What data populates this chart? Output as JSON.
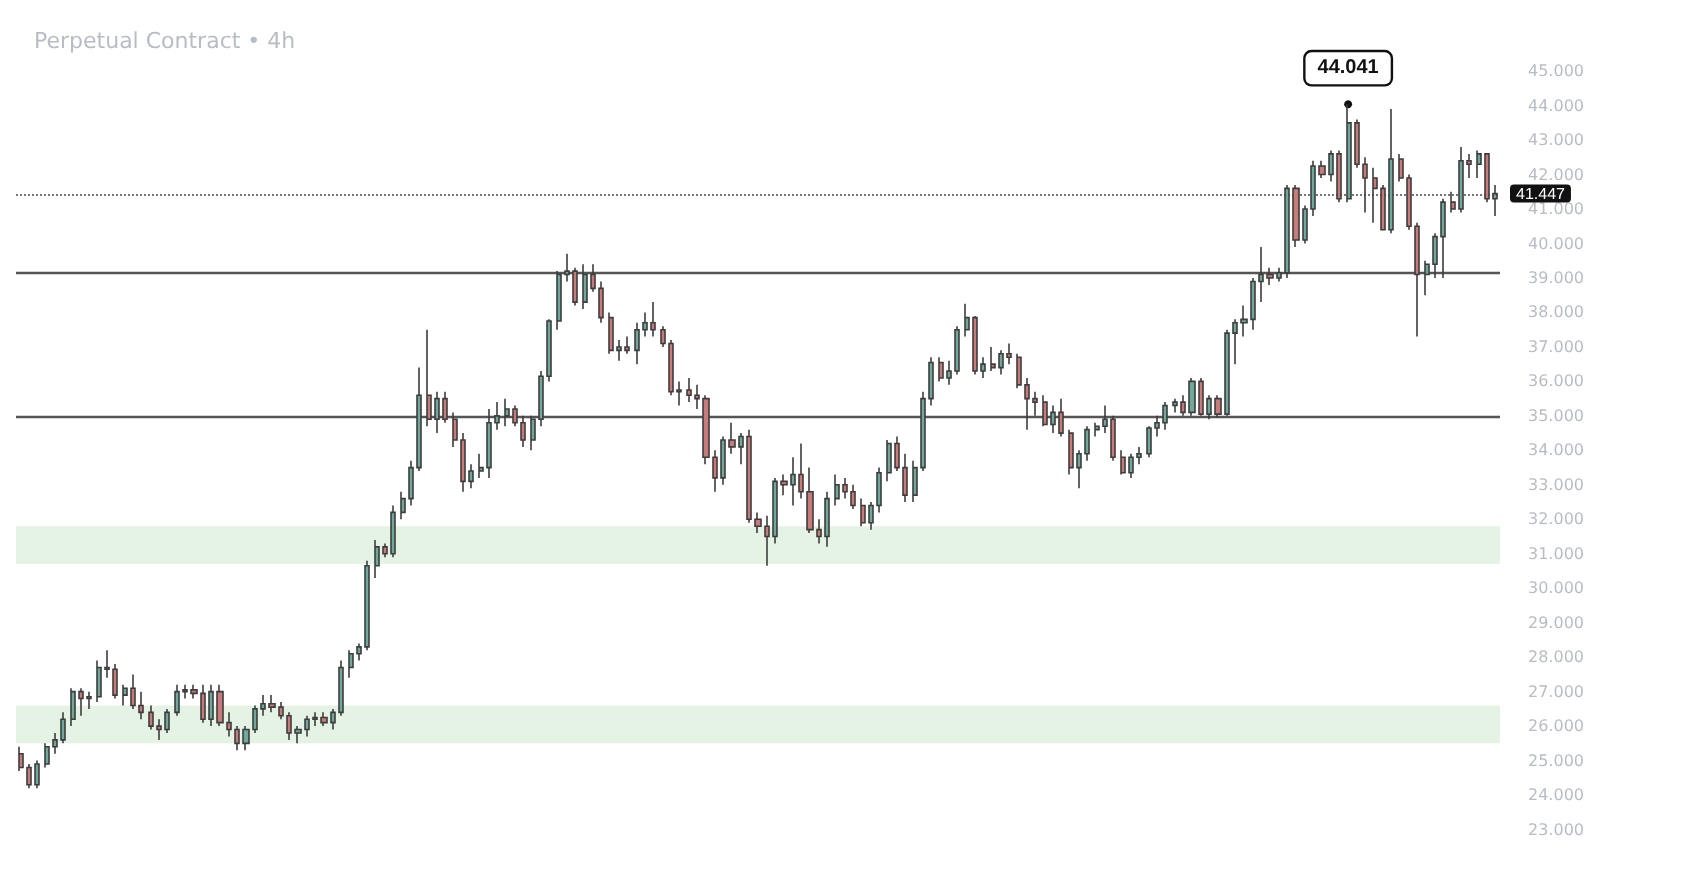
{
  "chart_data": {
    "type": "candlestick",
    "title": "Perpetual Contract • 4h",
    "categories": [
      null,
      null,
      null,
      null,
      null,
      null,
      null,
      null,
      null,
      null,
      null,
      null,
      null,
      null,
      null,
      null,
      null,
      null,
      null,
      null,
      null,
      null,
      null,
      null,
      null,
      null,
      null,
      null,
      null,
      null,
      null,
      null,
      null,
      null,
      null,
      null,
      null,
      null,
      null,
      null,
      null,
      null,
      null,
      null,
      null,
      null,
      null,
      null,
      null,
      null,
      null,
      null,
      null,
      null,
      null,
      null,
      null,
      null,
      null,
      null,
      null,
      null,
      null,
      null,
      null,
      null,
      null,
      null,
      null,
      null,
      null,
      null,
      null,
      null,
      null,
      null,
      null,
      null,
      null,
      null,
      null,
      null,
      null,
      null,
      null,
      null,
      null,
      null,
      null,
      null,
      null,
      null,
      null,
      null,
      null,
      null,
      null,
      null,
      null,
      null,
      null,
      null,
      null,
      null,
      null,
      null,
      null,
      null,
      null,
      null,
      null,
      null,
      null,
      null,
      null,
      null,
      null,
      null,
      null,
      null,
      null,
      null,
      null,
      null,
      null,
      null,
      null,
      null,
      null,
      null,
      null,
      null,
      null,
      null,
      null,
      null,
      null,
      null,
      null,
      null,
      null,
      null,
      null,
      null,
      null,
      null,
      null,
      null,
      null,
      null,
      null,
      null,
      null,
      null,
      null,
      null,
      null,
      null,
      null,
      null,
      null,
      null,
      null,
      null,
      null,
      null,
      null,
      null,
      null,
      null,
      null
    ],
    "ohlc": [
      [
        25.2,
        25.4,
        24.7,
        24.8
      ],
      [
        24.8,
        24.9,
        24.2,
        24.3
      ],
      [
        24.3,
        25.0,
        24.2,
        24.9
      ],
      [
        24.9,
        25.5,
        24.8,
        25.4
      ],
      [
        25.4,
        25.8,
        25.2,
        25.6
      ],
      [
        25.6,
        26.4,
        25.5,
        26.2
      ],
      [
        26.2,
        27.1,
        26.0,
        27.0
      ],
      [
        27.0,
        27.1,
        26.3,
        26.8
      ],
      [
        26.8,
        27.0,
        26.5,
        26.85
      ],
      [
        26.85,
        27.9,
        26.7,
        27.7
      ],
      [
        27.7,
        28.2,
        27.4,
        27.65
      ],
      [
        27.65,
        27.8,
        26.8,
        26.9
      ],
      [
        26.9,
        27.2,
        26.6,
        27.1
      ],
      [
        27.1,
        27.5,
        26.5,
        26.6
      ],
      [
        26.6,
        27.0,
        26.2,
        26.4
      ],
      [
        26.4,
        26.6,
        25.9,
        26.0
      ],
      [
        26.0,
        26.2,
        25.6,
        25.9
      ],
      [
        25.9,
        26.5,
        25.8,
        26.4
      ],
      [
        26.4,
        27.2,
        26.3,
        27.0
      ],
      [
        27.0,
        27.2,
        26.8,
        27.05
      ],
      [
        27.05,
        27.2,
        26.8,
        26.95
      ],
      [
        26.95,
        27.2,
        26.1,
        26.2
      ],
      [
        26.2,
        27.2,
        26.0,
        27.0
      ],
      [
        27.0,
        27.2,
        26.0,
        26.1
      ],
      [
        26.1,
        26.4,
        25.7,
        25.9
      ],
      [
        25.9,
        26.0,
        25.3,
        25.5
      ],
      [
        25.5,
        26.0,
        25.3,
        25.9
      ],
      [
        25.9,
        26.6,
        25.8,
        26.5
      ],
      [
        26.5,
        26.9,
        26.3,
        26.65
      ],
      [
        26.65,
        26.9,
        26.4,
        26.55
      ],
      [
        26.55,
        26.7,
        26.2,
        26.3
      ],
      [
        26.3,
        26.4,
        25.6,
        25.8
      ],
      [
        25.8,
        26.0,
        25.5,
        25.9
      ],
      [
        25.9,
        26.3,
        25.7,
        26.2
      ],
      [
        26.2,
        26.4,
        26.0,
        26.25
      ],
      [
        26.25,
        26.4,
        26.0,
        26.1
      ],
      [
        26.1,
        26.5,
        25.9,
        26.4
      ],
      [
        26.4,
        27.9,
        26.3,
        27.7
      ],
      [
        27.7,
        28.2,
        27.4,
        28.1
      ],
      [
        28.1,
        28.4,
        27.9,
        28.3
      ],
      [
        28.3,
        30.8,
        28.2,
        30.65
      ],
      [
        30.65,
        31.4,
        30.3,
        31.2
      ],
      [
        31.2,
        31.3,
        30.9,
        31.0
      ],
      [
        31.0,
        32.4,
        30.9,
        32.2
      ],
      [
        32.2,
        32.8,
        32.0,
        32.6
      ],
      [
        32.6,
        33.7,
        32.4,
        33.5
      ],
      [
        33.5,
        36.4,
        33.4,
        35.6
      ],
      [
        35.6,
        37.5,
        34.7,
        34.9
      ],
      [
        34.9,
        35.7,
        34.5,
        35.5
      ],
      [
        35.5,
        35.7,
        34.8,
        34.9
      ],
      [
        34.9,
        35.1,
        34.1,
        34.3
      ],
      [
        34.3,
        34.5,
        32.8,
        33.1
      ],
      [
        33.1,
        33.6,
        32.9,
        33.4
      ],
      [
        33.4,
        33.9,
        33.2,
        33.5
      ],
      [
        33.5,
        35.2,
        33.2,
        34.8
      ],
      [
        34.8,
        35.4,
        34.6,
        35.0
      ],
      [
        35.0,
        35.5,
        34.7,
        35.2
      ],
      [
        35.2,
        35.3,
        34.7,
        34.8
      ],
      [
        34.8,
        35.0,
        34.1,
        34.3
      ],
      [
        34.3,
        35.0,
        34.0,
        34.9
      ],
      [
        34.9,
        36.3,
        34.7,
        36.15
      ],
      [
        36.15,
        37.8,
        36.0,
        37.75
      ],
      [
        37.75,
        39.2,
        37.5,
        39.1
      ],
      [
        39.1,
        39.7,
        38.9,
        39.2
      ],
      [
        39.2,
        39.3,
        38.2,
        38.3
      ],
      [
        38.3,
        39.4,
        38.1,
        39.1
      ],
      [
        39.1,
        39.4,
        38.6,
        38.7
      ],
      [
        38.7,
        38.9,
        37.7,
        37.85
      ],
      [
        37.85,
        38.0,
        36.8,
        36.9
      ],
      [
        36.9,
        37.2,
        36.6,
        37.0
      ],
      [
        37.0,
        37.3,
        36.8,
        36.9
      ],
      [
        36.9,
        37.7,
        36.5,
        37.5
      ],
      [
        37.5,
        38.0,
        37.3,
        37.7
      ],
      [
        37.7,
        38.3,
        37.3,
        37.5
      ],
      [
        37.5,
        37.6,
        37.0,
        37.1
      ],
      [
        37.1,
        37.2,
        35.6,
        35.7
      ],
      [
        35.7,
        36.0,
        35.3,
        35.75
      ],
      [
        35.75,
        36.1,
        35.4,
        35.6
      ],
      [
        35.6,
        35.9,
        35.2,
        35.5
      ],
      [
        35.5,
        35.6,
        33.6,
        33.8
      ],
      [
        33.8,
        34.0,
        32.8,
        33.2
      ],
      [
        33.2,
        34.4,
        33.0,
        34.3
      ],
      [
        34.3,
        34.8,
        33.9,
        34.1
      ],
      [
        34.1,
        34.5,
        33.6,
        34.4
      ],
      [
        34.4,
        34.6,
        31.9,
        32.0
      ],
      [
        32.0,
        32.2,
        31.6,
        31.8
      ],
      [
        31.8,
        32.1,
        30.65,
        31.5
      ],
      [
        31.5,
        33.2,
        31.3,
        33.1
      ],
      [
        33.1,
        33.3,
        32.7,
        33.0
      ],
      [
        33.0,
        33.8,
        32.4,
        33.3
      ],
      [
        33.3,
        34.2,
        32.6,
        32.8
      ],
      [
        32.8,
        33.5,
        31.6,
        31.7
      ],
      [
        31.7,
        32.0,
        31.3,
        31.5
      ],
      [
        31.5,
        32.8,
        31.2,
        32.6
      ],
      [
        32.6,
        33.3,
        32.4,
        33.0
      ],
      [
        33.0,
        33.2,
        32.6,
        32.8
      ],
      [
        32.8,
        33.0,
        32.3,
        32.4
      ],
      [
        32.4,
        32.6,
        31.8,
        31.9
      ],
      [
        31.9,
        32.5,
        31.7,
        32.4
      ],
      [
        32.4,
        33.5,
        32.2,
        33.35
      ],
      [
        33.35,
        34.3,
        33.1,
        34.2
      ],
      [
        34.2,
        34.4,
        33.4,
        33.5
      ],
      [
        33.5,
        33.9,
        32.5,
        32.7
      ],
      [
        32.7,
        33.7,
        32.5,
        33.5
      ],
      [
        33.5,
        35.7,
        33.4,
        35.5
      ],
      [
        35.5,
        36.7,
        35.3,
        36.55
      ],
      [
        36.55,
        36.7,
        36.0,
        36.1
      ],
      [
        36.1,
        36.6,
        35.9,
        36.3
      ],
      [
        36.3,
        37.6,
        36.2,
        37.5
      ],
      [
        37.5,
        38.25,
        37.3,
        37.85
      ],
      [
        37.85,
        37.9,
        36.2,
        36.3
      ],
      [
        36.3,
        36.7,
        36.1,
        36.5
      ],
      [
        36.5,
        37.0,
        36.3,
        36.4
      ],
      [
        36.4,
        36.9,
        36.2,
        36.8
      ],
      [
        36.8,
        37.1,
        36.5,
        36.7
      ],
      [
        36.7,
        36.8,
        35.8,
        35.9
      ],
      [
        35.9,
        36.1,
        34.6,
        35.5
      ],
      [
        35.5,
        35.7,
        35.0,
        35.4
      ],
      [
        35.4,
        35.6,
        34.7,
        34.75
      ],
      [
        34.75,
        35.3,
        34.5,
        35.1
      ],
      [
        35.1,
        35.5,
        34.4,
        34.5
      ],
      [
        34.5,
        34.6,
        33.3,
        33.5
      ],
      [
        33.5,
        34.0,
        32.9,
        33.9
      ],
      [
        33.9,
        34.7,
        33.7,
        34.6
      ],
      [
        34.6,
        34.8,
        34.4,
        34.7
      ],
      [
        34.7,
        35.3,
        34.5,
        34.9
      ],
      [
        34.9,
        35.0,
        33.7,
        33.8
      ],
      [
        33.8,
        34.0,
        33.3,
        33.35
      ],
      [
        33.35,
        33.9,
        33.2,
        33.8
      ],
      [
        33.8,
        34.1,
        33.6,
        33.9
      ],
      [
        33.9,
        34.7,
        33.8,
        34.65
      ],
      [
        34.65,
        35.0,
        34.4,
        34.8
      ],
      [
        34.8,
        35.4,
        34.6,
        35.3
      ],
      [
        35.3,
        35.5,
        35.1,
        35.4
      ],
      [
        35.4,
        35.6,
        35.0,
        35.1
      ],
      [
        35.1,
        36.1,
        35.0,
        36.0
      ],
      [
        36.0,
        36.1,
        35.0,
        35.05
      ],
      [
        35.05,
        35.6,
        34.9,
        35.5
      ],
      [
        35.5,
        35.6,
        34.95,
        35.05
      ],
      [
        35.05,
        37.5,
        35.0,
        37.4
      ],
      [
        37.4,
        37.8,
        36.5,
        37.7
      ],
      [
        37.7,
        38.2,
        37.3,
        37.8
      ],
      [
        37.8,
        39.0,
        37.5,
        38.9
      ],
      [
        38.9,
        39.9,
        38.3,
        39.1
      ],
      [
        39.1,
        39.3,
        38.8,
        39.0
      ],
      [
        39.0,
        39.3,
        38.9,
        39.15
      ],
      [
        39.15,
        41.7,
        39.0,
        41.6
      ],
      [
        41.6,
        41.7,
        39.9,
        40.1
      ],
      [
        40.1,
        41.1,
        40.0,
        41.0
      ],
      [
        41.0,
        42.4,
        40.8,
        42.25
      ],
      [
        42.25,
        42.4,
        41.9,
        42.0
      ],
      [
        42.0,
        42.7,
        41.8,
        42.6
      ],
      [
        42.6,
        42.7,
        41.2,
        41.3
      ],
      [
        41.3,
        44.041,
        41.2,
        43.5
      ],
      [
        43.5,
        43.6,
        42.2,
        42.3
      ],
      [
        42.3,
        42.5,
        40.9,
        41.9
      ],
      [
        41.9,
        42.2,
        40.6,
        41.6
      ],
      [
        41.6,
        41.7,
        40.4,
        40.4
      ],
      [
        40.4,
        43.9,
        40.3,
        42.45
      ],
      [
        42.45,
        42.6,
        41.8,
        41.9
      ],
      [
        41.9,
        42.0,
        40.4,
        40.5
      ],
      [
        40.5,
        40.6,
        37.3,
        39.1
      ],
      [
        39.1,
        39.5,
        38.5,
        39.4
      ],
      [
        39.4,
        40.3,
        39.0,
        40.2
      ],
      [
        40.2,
        41.3,
        39.0,
        41.2
      ],
      [
        41.2,
        41.5,
        40.9,
        41.0
      ],
      [
        41.0,
        42.8,
        40.9,
        42.4
      ],
      [
        42.4,
        42.6,
        41.9,
        42.3
      ],
      [
        42.3,
        42.7,
        41.9,
        42.6
      ],
      [
        42.6,
        42.6,
        41.2,
        41.3
      ],
      [
        41.3,
        41.7,
        40.8,
        41.447
      ]
    ],
    "ylim": [
      22,
      46.6
    ],
    "yticks": [
      {
        "value": 23,
        "label": "23.000"
      },
      {
        "value": 24,
        "label": "24.000"
      },
      {
        "value": 25,
        "label": "25.000"
      },
      {
        "value": 26,
        "label": "26.000"
      },
      {
        "value": 27,
        "label": "27.000"
      },
      {
        "value": 28,
        "label": "28.000"
      },
      {
        "value": 29,
        "label": "29.000"
      },
      {
        "value": 30,
        "label": "30.000"
      },
      {
        "value": 31,
        "label": "31.000"
      },
      {
        "value": 32,
        "label": "32.000"
      },
      {
        "value": 33,
        "label": "33.000"
      },
      {
        "value": 34,
        "label": "34.000"
      },
      {
        "value": 35,
        "label": "35.000"
      },
      {
        "value": 36,
        "label": "36.000"
      },
      {
        "value": 37,
        "label": "37.000"
      },
      {
        "value": 38,
        "label": "38.000"
      },
      {
        "value": 39,
        "label": "39.000"
      },
      {
        "value": 40,
        "label": "40.000"
      },
      {
        "value": 41,
        "label": "41.000"
      },
      {
        "value": 42,
        "label": "42.000"
      },
      {
        "value": 43,
        "label": "43.000"
      },
      {
        "value": 44,
        "label": "44.000"
      },
      {
        "value": 45,
        "label": "45.000"
      }
    ],
    "ref_lines": [
      {
        "axis": "y",
        "value": 39.15,
        "color": "#555555",
        "line_style": "solid"
      },
      {
        "axis": "y",
        "value": 35.0,
        "color": "#555555",
        "line_style": "solid"
      },
      {
        "axis": "y",
        "value": 41.447,
        "label": "41.447",
        "color": "#777777",
        "line_style": "dotted"
      }
    ],
    "bands": [
      {
        "axis": "y",
        "from": 30.7,
        "to": 31.8,
        "color": "#e4f3e4"
      },
      {
        "axis": "y",
        "from": 25.5,
        "to": 26.6,
        "color": "#e4f3e4"
      }
    ],
    "annotations": [
      {
        "text": "44.041",
        "y": 44.041
      }
    ],
    "tick_labels": "y",
    "grid": false
  }
}
